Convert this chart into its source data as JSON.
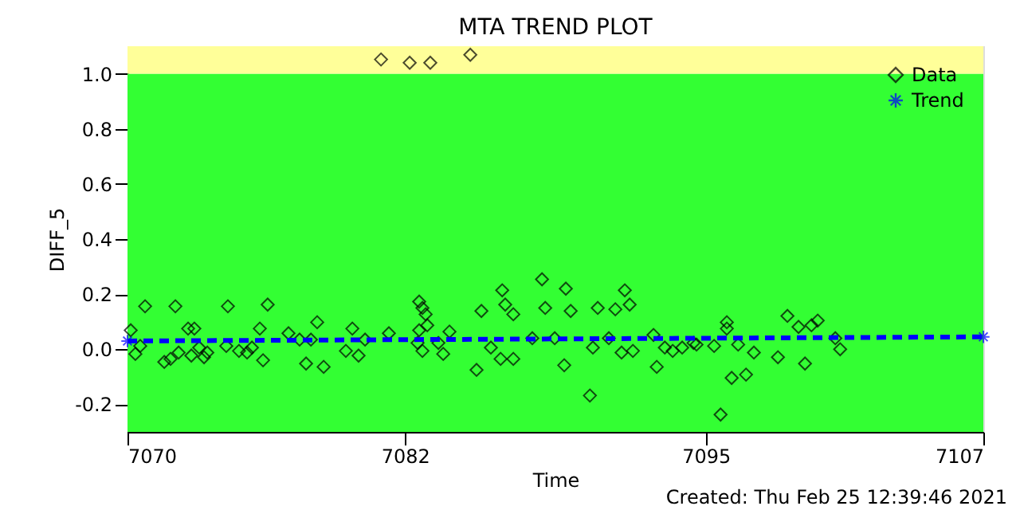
{
  "chart_data": {
    "type": "scatter",
    "title": "MTA TREND PLOT",
    "xlabel": "Time",
    "ylabel": "DIFF_5",
    "annotations": [
      "Created: Thu Feb 25 12:39:46 2021"
    ],
    "xlim": [
      7070,
      7107
    ],
    "xticks": [
      7070,
      7082,
      7095,
      7107
    ],
    "ylim": [
      -0.3,
      1.1
    ],
    "yticks": [
      -0.2,
      {
        "value": 0,
        "label": "0.0"
      },
      0.2,
      0.4,
      0.6,
      0.8,
      {
        "value": 1,
        "label": "1.0"
      }
    ],
    "grid": false,
    "legend": "top right",
    "bands": [
      {
        "axis": "y",
        "from": -0.3,
        "to": 1.0,
        "color": "#33ff33"
      },
      {
        "axis": "y",
        "from": 1.0,
        "to": 1.1,
        "color": "#ffff99"
      }
    ],
    "series": [
      {
        "name": "Data",
        "type": "scatter",
        "color": "#000000",
        "marker": "diamond",
        "x": [
          7070.76,
          7072.07,
          7074.34,
          7076.06,
          7070.14,
          7072.62,
          7072.89,
          7075.72,
          7078.2,
          7079.72,
          7076.96,
          7077.44,
          7077.93,
          7080.27,
          7081.3,
          7070.55,
          7070.34,
          7071.59,
          7071.86,
          7072.21,
          7072.76,
          7073.1,
          7073.31,
          7073.45,
          7074.27,
          7074.82,
          7075.17,
          7075.38,
          7075.86,
          7077.72,
          7078.48,
          7079.44,
          7079.99,
          7082.61,
          7082.75,
          7082.89,
          7082.61,
          7082.96,
          7082.54,
          7082.75,
          7083.44,
          7083.65,
          7083.92,
          7085.3,
          7085.09,
          7085.71,
          7086.2,
          7086.33,
          7086.68,
          7086.13,
          7086.68,
          7087.5,
          7087.92,
          7088.06,
          7088.95,
          7089.16,
          7088.47,
          7088.88,
          7089.99,
          7090.12,
          7090.33,
          7090.81,
          7091.09,
          7091.5,
          7091.71,
          7091.36,
          7091.85,
          7092.88,
          7092.74,
          7093.23,
          7093.57,
          7093.98,
          7094.47,
          7095.36,
          7095.91,
          7095.91,
          7096.4,
          7097.08,
          7096.12,
          7096.74,
          7095.64,
          7098.12,
          7098.53,
          7099.01,
          7099.57,
          7099.84,
          7099.29,
          7100.6,
          7100.81,
          7094.6,
          7080.96,
          7082.2,
          7083.09,
          7084.82
        ],
        "values": [
          0.156,
          0.156,
          0.156,
          0.162,
          0.069,
          0.075,
          0.075,
          0.075,
          0.098,
          0.075,
          0.058,
          0.035,
          0.035,
          0.035,
          0.058,
          0.012,
          -0.017,
          -0.046,
          -0.035,
          -0.012,
          -0.023,
          0.006,
          -0.029,
          -0.012,
          0.012,
          -0.006,
          -0.012,
          0.006,
          -0.04,
          -0.052,
          -0.064,
          -0.006,
          -0.023,
          0.173,
          0.15,
          0.127,
          0.069,
          0.087,
          0.023,
          -0.006,
          0.023,
          -0.017,
          0.064,
          0.139,
          -0.075,
          0.006,
          0.214,
          0.162,
          0.127,
          -0.035,
          -0.035,
          0.04,
          0.254,
          0.15,
          0.22,
          0.139,
          0.04,
          -0.058,
          -0.168,
          0.006,
          0.15,
          0.04,
          0.145,
          0.214,
          0.162,
          -0.012,
          -0.006,
          -0.064,
          0.052,
          0.006,
          -0.006,
          0.006,
          0.023,
          0.012,
          0.098,
          0.075,
          0.017,
          -0.012,
          -0.104,
          -0.092,
          -0.237,
          -0.029,
          0.121,
          0.081,
          0.087,
          0.104,
          -0.052,
          0.04,
          0.0,
          0.017,
          1.052,
          1.04,
          1.04,
          1.069
        ]
      },
      {
        "name": "Trend",
        "type": "line",
        "color": "#0000ff",
        "marker": "cross",
        "line_style": "dashed",
        "x": [
          7070,
          7107
        ],
        "values": [
          0.03,
          0.045
        ]
      }
    ]
  }
}
